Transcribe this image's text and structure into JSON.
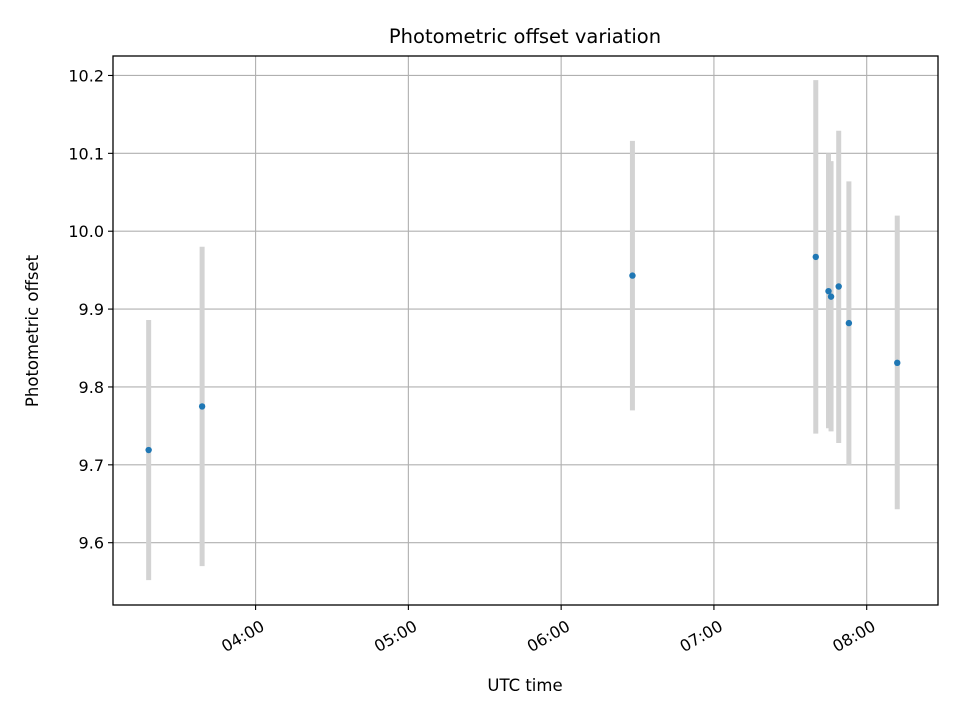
{
  "chart_data": {
    "type": "scatter",
    "title": "Photometric offset variation",
    "xlabel": "UTC time",
    "ylabel": "Photometric offset",
    "xlim": [
      "03:04",
      "08:28"
    ],
    "ylim": [
      9.52,
      10.225
    ],
    "x_ticks": [
      "04:00",
      "05:00",
      "06:00",
      "07:00",
      "08:00"
    ],
    "y_ticks": [
      9.6,
      9.7,
      9.8,
      9.9,
      10.0,
      10.1,
      10.2
    ],
    "y_tick_labels": [
      "9.6",
      "9.7",
      "9.8",
      "9.9",
      "10.0",
      "10.1",
      "10.2"
    ],
    "grid": true,
    "colors": {
      "point": "#1f77b4",
      "error_bar": "#d3d3d3",
      "grid": "#b0b0b0"
    },
    "series": [
      {
        "points": [
          {
            "x": "03:18",
            "y": 9.719,
            "low": 9.552,
            "high": 9.886
          },
          {
            "x": "03:39",
            "y": 9.775,
            "low": 9.57,
            "high": 9.98
          },
          {
            "x": "06:28",
            "y": 9.943,
            "low": 9.77,
            "high": 10.116
          },
          {
            "x": "07:40",
            "y": 9.967,
            "low": 9.74,
            "high": 10.194
          },
          {
            "x": "07:45",
            "y": 9.923,
            "low": 9.747,
            "high": 10.1
          },
          {
            "x": "07:46",
            "y": 9.916,
            "low": 9.743,
            "high": 10.09
          },
          {
            "x": "07:49",
            "y": 9.929,
            "low": 9.728,
            "high": 10.129
          },
          {
            "x": "07:53",
            "y": 9.882,
            "low": 9.7,
            "high": 10.064
          },
          {
            "x": "08:12",
            "y": 9.831,
            "low": 9.643,
            "high": 10.02
          }
        ]
      }
    ]
  }
}
